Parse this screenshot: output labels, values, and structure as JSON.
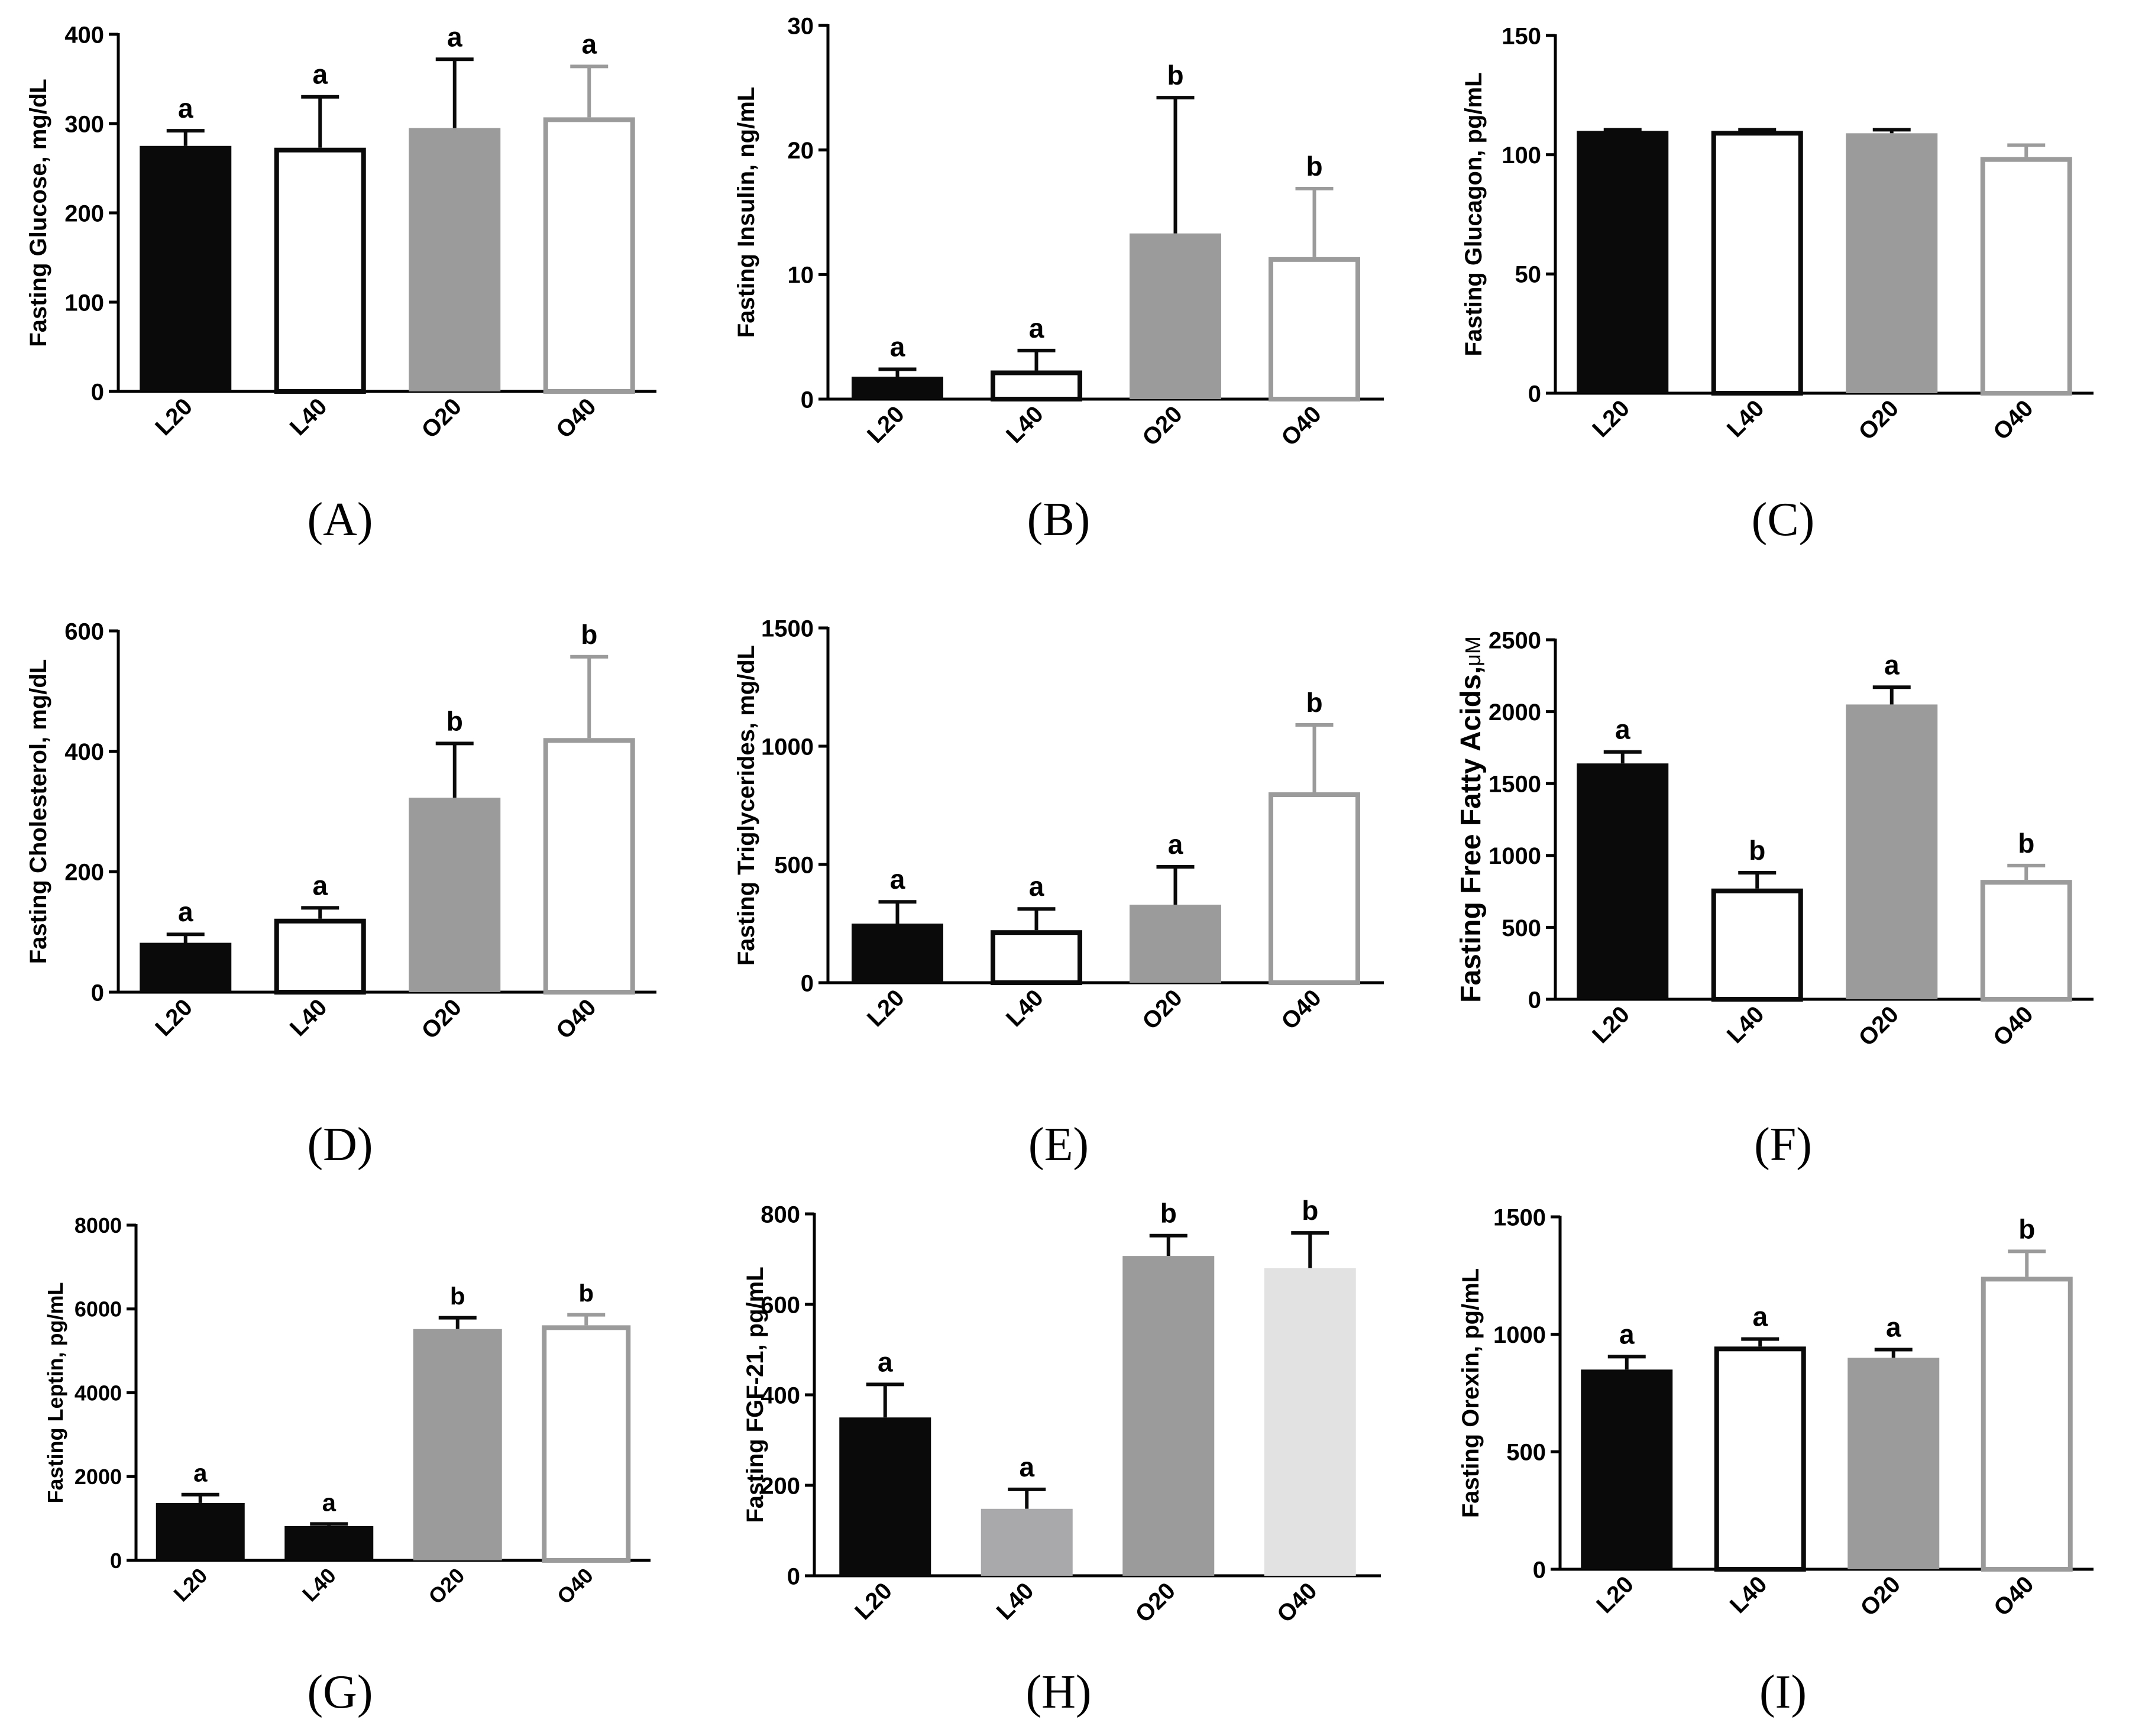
{
  "figure": {
    "background": "#ffffff"
  },
  "chart_data": [
    {
      "id": "A",
      "panel_label": "(A)",
      "type": "bar",
      "ylabel": "Fasting Glucose, mg/dL",
      "categories": [
        "L20",
        "L40",
        "O20",
        "O40"
      ],
      "values": [
        275,
        273,
        295,
        307
      ],
      "errors": [
        17,
        57,
        77,
        57
      ],
      "letters": [
        "a",
        "a",
        "a",
        "a"
      ],
      "ylim": [
        0,
        400
      ],
      "yticks": [
        0,
        100,
        200,
        300,
        400
      ],
      "bar_styles": [
        "black",
        "white-black",
        "gray",
        "white-gray"
      ]
    },
    {
      "id": "B",
      "panel_label": "(B)",
      "type": "bar",
      "ylabel": "Fasting Insulin, ng/mL",
      "categories": [
        "L20",
        "L40",
        "O20",
        "O40"
      ],
      "values": [
        1.8,
        2.3,
        13.3,
        11.4
      ],
      "errors": [
        0.6,
        1.6,
        10.9,
        5.5
      ],
      "letters": [
        "a",
        "a",
        "b",
        "b"
      ],
      "ylim": [
        0,
        30
      ],
      "yticks": [
        0,
        10,
        20,
        30
      ],
      "bar_styles": [
        "black",
        "white-black",
        "gray",
        "white-gray"
      ]
    },
    {
      "id": "C",
      "panel_label": "(C)",
      "type": "bar",
      "ylabel": "Fasting Glucagon, pg/mL",
      "categories": [
        "L20",
        "L40",
        "O20",
        "O40"
      ],
      "values": [
        110,
        110,
        109,
        99
      ],
      "errors": [
        0.5,
        0.5,
        1.5,
        5
      ],
      "letters": [
        "",
        "",
        "",
        ""
      ],
      "ylim": [
        0,
        150
      ],
      "yticks": [
        0,
        50,
        100,
        150
      ],
      "bar_styles": [
        "black",
        "white-black",
        "gray",
        "white-gray"
      ]
    },
    {
      "id": "D",
      "panel_label": "(D)",
      "type": "bar",
      "ylabel": "Fasting Cholesterol, mg/dL",
      "categories": [
        "L20",
        "L40",
        "O20",
        "O40"
      ],
      "values": [
        82,
        122,
        323,
        422
      ],
      "errors": [
        14,
        18,
        90,
        135
      ],
      "letters": [
        "a",
        "a",
        "b",
        "b"
      ],
      "ylim": [
        0,
        600
      ],
      "yticks": [
        0,
        200,
        400,
        600
      ],
      "bar_styles": [
        "black",
        "white-black",
        "gray",
        "white-gray"
      ]
    },
    {
      "id": "E",
      "panel_label": "(E)",
      "type": "bar",
      "ylabel": "Fasting Triglycerides, mg/dL",
      "categories": [
        "L20",
        "L40",
        "O20",
        "O40"
      ],
      "values": [
        250,
        222,
        330,
        805
      ],
      "errors": [
        92,
        90,
        160,
        285
      ],
      "letters": [
        "a",
        "a",
        "a",
        "b"
      ],
      "ylim": [
        0,
        1500
      ],
      "yticks": [
        0,
        500,
        1000,
        1500
      ],
      "bar_styles": [
        "black",
        "white-black",
        "gray",
        "white-gray"
      ]
    },
    {
      "id": "F",
      "panel_label": "(F)",
      "type": "bar",
      "ylabel": "Fasting Free Fatty Acids,",
      "ylabel_unit": "μM",
      "categories": [
        "L20",
        "L40",
        "O20",
        "O40"
      ],
      "values": [
        1640,
        770,
        2050,
        830
      ],
      "errors": [
        80,
        110,
        120,
        100
      ],
      "letters": [
        "a",
        "b",
        "a",
        "b"
      ],
      "ylim": [
        0,
        2500
      ],
      "yticks": [
        0,
        500,
        1000,
        1500,
        2000,
        2500
      ],
      "bar_styles": [
        "black",
        "white-black",
        "gray",
        "white-gray"
      ]
    },
    {
      "id": "G",
      "panel_label": "(G)",
      "type": "bar",
      "ylabel": "Fasting Leptin, pg/mL",
      "categories": [
        "L20",
        "L40",
        "O20",
        "O40"
      ],
      "values": [
        1370,
        820,
        5520,
        5610
      ],
      "errors": [
        200,
        50,
        270,
        250
      ],
      "letters": [
        "a",
        "a",
        "b",
        "b"
      ],
      "ylim": [
        0,
        8000
      ],
      "yticks": [
        0,
        2000,
        4000,
        6000,
        8000
      ],
      "bar_styles": [
        "black",
        "black",
        "gray",
        "white-gray"
      ]
    },
    {
      "id": "H",
      "panel_label": "(H)",
      "type": "bar",
      "ylabel": "Fasting FGF-21, pg/mL",
      "categories": [
        "L20",
        "L40",
        "O20",
        "O40"
      ],
      "values": [
        350,
        148,
        707,
        680
      ],
      "errors": [
        73,
        43,
        45,
        78
      ],
      "letters": [
        "a",
        "a",
        "b",
        "b"
      ],
      "ylim": [
        0,
        800
      ],
      "yticks": [
        0,
        200,
        400,
        600,
        800
      ],
      "bar_styles": [
        "black",
        "midgray",
        "gray",
        "lightgray"
      ]
    },
    {
      "id": "I",
      "panel_label": "(I)",
      "type": "bar",
      "ylabel": "Fasting Orexin, pg/mL",
      "categories": [
        "L20",
        "L40",
        "O20",
        "O40"
      ],
      "values": [
        850,
        948,
        900,
        1245
      ],
      "errors": [
        55,
        32,
        35,
        108
      ],
      "letters": [
        "a",
        "a",
        "a",
        "b"
      ],
      "ylim": [
        0,
        1500
      ],
      "yticks": [
        0,
        500,
        1000,
        1500
      ],
      "bar_styles": [
        "black",
        "white-black",
        "gray",
        "white-gray"
      ]
    }
  ]
}
